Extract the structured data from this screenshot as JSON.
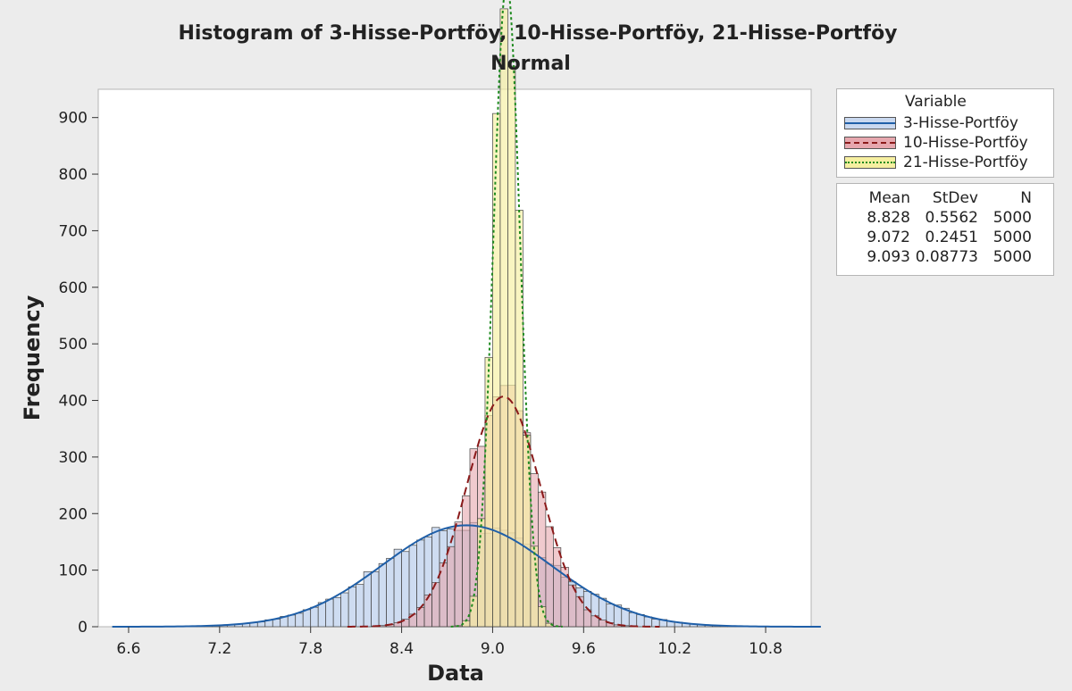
{
  "chart_data": {
    "type": "histogram",
    "title": "Histogram of 3-Hisse-Portföy, 10-Hisse-Portföy, 21-Hisse-Portföy",
    "subtitle": "Normal",
    "xlabel": "Data",
    "ylabel": "Frequency",
    "xlim": [
      6.4,
      11.1
    ],
    "ylim": [
      0,
      950
    ],
    "x_ticks": [
      6.6,
      7.2,
      7.8,
      8.4,
      9.0,
      9.6,
      10.2,
      10.8
    ],
    "y_ticks": [
      0,
      100,
      200,
      300,
      400,
      500,
      600,
      700,
      800,
      900
    ],
    "bin_width": 0.05,
    "sample_size": 5000,
    "legend": {
      "title": "Variable",
      "position": "right"
    },
    "stats_header": {
      "mean": "Mean",
      "stdev": "StDev",
      "n": "N"
    },
    "series": [
      {
        "name": "3-Hisse-Portföy",
        "mean": 8.828,
        "stdev": 0.5562,
        "n": 5000,
        "mean_label": "8.828",
        "stdev_label": "0.5562",
        "n_label": "5000",
        "fill": "#c9d8ef",
        "line": "#1f5fa8",
        "line_style": "solid"
      },
      {
        "name": "10-Hisse-Portföy",
        "mean": 9.072,
        "stdev": 0.2451,
        "n": 5000,
        "mean_label": "9.072",
        "stdev_label": "0.2451",
        "n_label": "5000",
        "fill": "#e6a7ae",
        "line": "#8b1a1a",
        "line_style": "dashed"
      },
      {
        "name": "21-Hisse-Portföy",
        "mean": 9.093,
        "stdev": 0.08773,
        "n": 5000,
        "mean_label": "9.093",
        "stdev_label": "0.08773",
        "n_label": "5000",
        "fill": "#f6efa0",
        "line": "#1e8a1e",
        "line_style": "dotted"
      }
    ]
  }
}
